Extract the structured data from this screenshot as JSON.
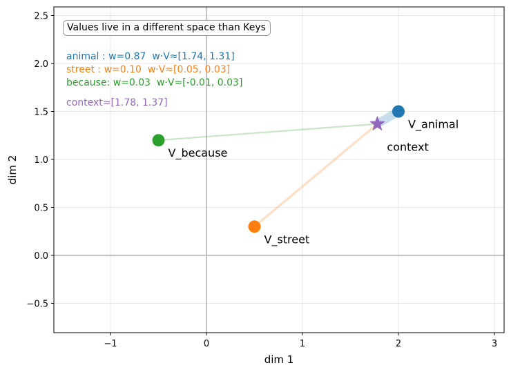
{
  "chart_data": {
    "type": "scatter",
    "title": "Values live in a different space than Keys",
    "xlabel": "dim 1",
    "ylabel": "dim 2",
    "xlim": [
      -1.6,
      3.1
    ],
    "ylim": [
      -0.8,
      2.6
    ],
    "xticks": [
      -1,
      0,
      1,
      2,
      3
    ],
    "xtick_labels": [
      "−1",
      "0",
      "1",
      "2",
      "3"
    ],
    "yticks": [
      -0.5,
      0.0,
      0.5,
      1.0,
      1.5,
      2.0,
      2.5
    ],
    "ytick_labels": [
      "−0.5",
      "0.0",
      "0.5",
      "1.0",
      "1.5",
      "2.0",
      "2.5"
    ],
    "grid": true,
    "points": [
      {
        "name": "V_animal",
        "x": 2.0,
        "y": 1.5,
        "color": "#1f77b4",
        "weight": 0.87
      },
      {
        "name": "V_street",
        "x": 0.5,
        "y": 0.3,
        "color": "#ff7f0e",
        "weight": 0.1
      },
      {
        "name": "V_because",
        "x": -0.5,
        "y": 1.2,
        "color": "#2ca02c",
        "weight": 0.03
      }
    ],
    "context": {
      "name": "context",
      "x": 1.78,
      "y": 1.37,
      "color": "#9467bd",
      "marker": "star"
    },
    "annotations": [
      {
        "text": "animal : w=0.87  w·V≈[1.74, 1.31]",
        "color": "#1f77b4"
      },
      {
        "text": "street : w=0.10  w·V≈[0.05, 0.03]",
        "color": "#ff7f0e"
      },
      {
        "text": "because: w=0.03  w·V≈[-0.01, 0.03]",
        "color": "#2ca02c"
      },
      {
        "text": "context≈[1.78, 1.37]",
        "color": "#9467bd"
      }
    ]
  }
}
